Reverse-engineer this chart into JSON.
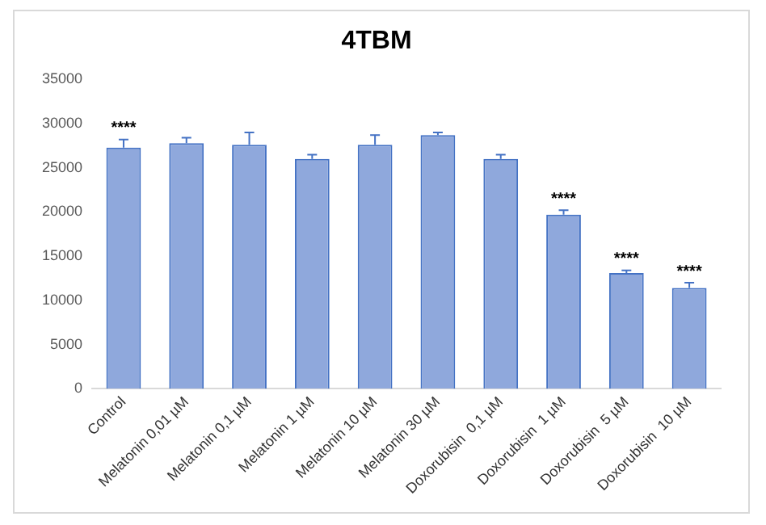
{
  "chart_data": {
    "type": "bar",
    "title": "4TBM",
    "categories": [
      "Control",
      "Melatonin 0,01 µM",
      "Melatonin 0,1 µM",
      "Melatonin 1 µM",
      "Melatonin 10 µM",
      "Melatonin 30 µM",
      "Doxorubisin  0,1 µM",
      "Doxorubisin  1 µM",
      "Doxorubisin  5 µM",
      "Doxorubisin  10 µM"
    ],
    "values": [
      27300,
      27800,
      27600,
      26000,
      27600,
      28700,
      26000,
      19700,
      13100,
      11400
    ],
    "errors": [
      [
        27300,
        28200
      ],
      [
        27800,
        28400
      ],
      [
        27600,
        29000
      ],
      [
        26000,
        26500
      ],
      [
        27600,
        28700
      ],
      [
        28700,
        29000
      ],
      [
        26000,
        26500
      ],
      [
        19700,
        20200
      ],
      [
        13100,
        13400
      ],
      [
        11400,
        12000
      ]
    ],
    "color": "#8fa8dc",
    "ylim": [
      0,
      35000
    ],
    "yticks": [
      0,
      5000,
      10000,
      15000,
      20000,
      25000,
      30000,
      35000
    ],
    "grid": false,
    "annotations": [
      {
        "text": "****",
        "x": "Control",
        "y": 28200
      },
      {
        "text": "****",
        "x": "Doxorubisin  1 µM",
        "y": 20200
      },
      {
        "text": "****",
        "x": "Doxorubisin  5 µM",
        "y": 13400
      },
      {
        "text": "****",
        "x": "Doxorubisin  10 µM",
        "y": 12000
      }
    ]
  }
}
